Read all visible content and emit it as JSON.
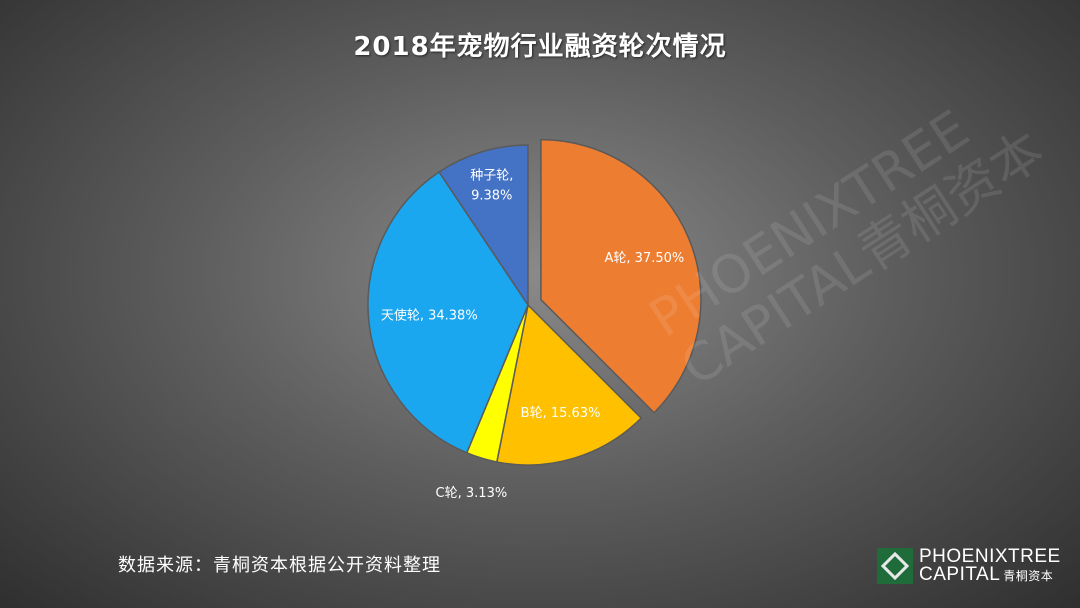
{
  "title": "2018年宠物行业融资轮次情况",
  "source_note": "数据来源：青桐资本根据公开资料整理",
  "logo": {
    "line1": "PHOENIXTREE",
    "line2": "CAPITAL",
    "cn": "青桐资本"
  },
  "watermark": {
    "line1": "PHOENIXTREE",
    "line2": "CAPITAL青桐资本"
  },
  "chart_data": {
    "type": "pie",
    "title": "2018年宠物行业融资轮次情况",
    "start_angle_deg": 0,
    "direction": "clockwise",
    "slices": [
      {
        "name": "A轮",
        "value": 37.5,
        "label": "A轮, 37.50%",
        "color": "#ED7D31",
        "exploded": true
      },
      {
        "name": "B轮",
        "value": 15.63,
        "label": "B轮, 15.63%",
        "color": "#FFC000",
        "exploded": false
      },
      {
        "name": "C轮",
        "value": 3.13,
        "label": "C轮, 3.13%",
        "color": "#FFFF00",
        "exploded": false
      },
      {
        "name": "天使轮",
        "value": 34.38,
        "label": "天使轮, 34.38%",
        "color": "#1BA6F0",
        "exploded": false
      },
      {
        "name": "种子轮",
        "value": 9.38,
        "label": "种子轮, 9.38%",
        "label_lines": [
          "种子轮,",
          "9.38%"
        ],
        "color": "#4472C4",
        "exploded": false
      }
    ]
  }
}
